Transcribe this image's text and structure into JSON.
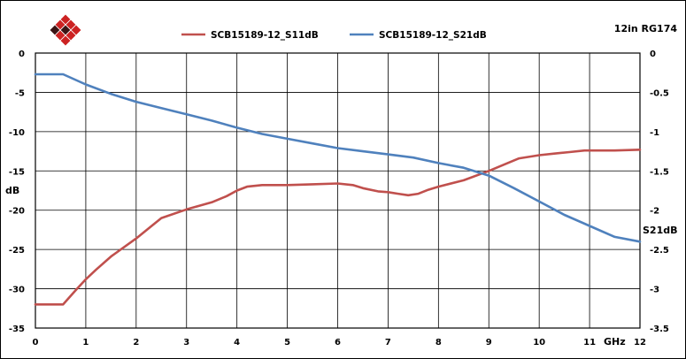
{
  "chart_data": {
    "type": "line",
    "corner_label": "12in RG174",
    "xlabel": "GHz",
    "ylabel_left": "dB",
    "ylabel_right": "S21dB",
    "xlim": [
      0,
      12
    ],
    "ylim_left": [
      -35,
      0
    ],
    "ylim_right": [
      -3.5,
      0
    ],
    "grid": true,
    "legend_position": "top-center",
    "x_ticks": [
      "0",
      "1",
      "2",
      "3",
      "4",
      "5",
      "6",
      "7",
      "8",
      "9",
      "10",
      "11",
      "12"
    ],
    "y_ticks_left": [
      "0",
      "-5",
      "-10",
      "-15",
      "-20",
      "-25",
      "-30",
      "-35"
    ],
    "y_ticks_right": [
      "0",
      "-0.5",
      "-1",
      "-1.5",
      "-2",
      "-2.5",
      "-3",
      "-3.5"
    ],
    "series": [
      {
        "name": "SCB15189-12_S11dB",
        "axis": "left",
        "color": "#c0504d",
        "x": [
          0,
          0.3,
          0.55,
          0.8,
          1.0,
          1.2,
          1.5,
          2.0,
          2.5,
          3.0,
          3.5,
          3.8,
          4.0,
          4.2,
          4.5,
          5.0,
          5.5,
          6.0,
          6.3,
          6.5,
          6.8,
          7.0,
          7.2,
          7.4,
          7.6,
          7.8,
          8.0,
          8.5,
          9.0,
          9.3,
          9.6,
          10.0,
          10.3,
          10.6,
          10.9,
          11.2,
          11.5,
          12.0
        ],
        "y": [
          -32.0,
          -32.0,
          -32.0,
          -30.2,
          -28.8,
          -27.6,
          -25.9,
          -23.6,
          -21.0,
          -19.9,
          -19.0,
          -18.2,
          -17.5,
          -17.0,
          -16.8,
          -16.8,
          -16.7,
          -16.6,
          -16.8,
          -17.2,
          -17.6,
          -17.7,
          -17.9,
          -18.1,
          -17.9,
          -17.4,
          -17.0,
          -16.2,
          -15.0,
          -14.2,
          -13.4,
          -13.0,
          -12.8,
          -12.6,
          -12.4,
          -12.4,
          -12.4,
          -12.3
        ]
      },
      {
        "name": "SCB15189-12_S21dB",
        "axis": "right",
        "color": "#4f81bd",
        "x": [
          0,
          0.3,
          0.55,
          1.0,
          1.5,
          2.0,
          2.5,
          3.0,
          3.5,
          4.0,
          4.5,
          5.0,
          5.5,
          6.0,
          6.5,
          7.0,
          7.5,
          8.0,
          8.5,
          9.0,
          9.5,
          10.0,
          10.5,
          11.0,
          11.5,
          12.0
        ],
        "y": [
          -0.27,
          -0.27,
          -0.27,
          -0.4,
          -0.52,
          -0.62,
          -0.7,
          -0.78,
          -0.86,
          -0.95,
          -1.03,
          -1.09,
          -1.15,
          -1.21,
          -1.25,
          -1.29,
          -1.33,
          -1.4,
          -1.46,
          -1.56,
          -1.72,
          -1.89,
          -2.06,
          -2.2,
          -2.34,
          -2.4
        ]
      }
    ]
  }
}
